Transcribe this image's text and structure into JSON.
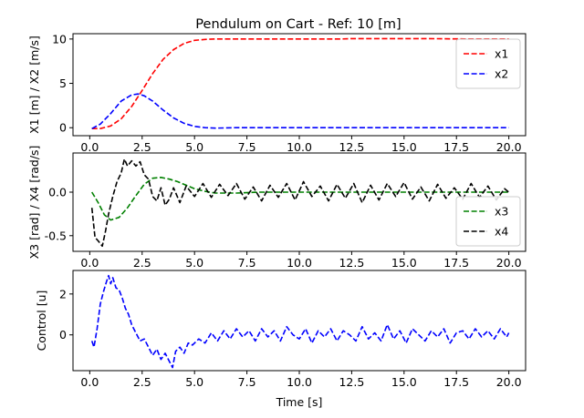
{
  "figure": {
    "title": "Pendulum on Cart - Ref: 10 [m]"
  },
  "chart_data": [
    {
      "type": "line",
      "ylabel": "X1 [m] / X2 [m/s]",
      "xlabel": "",
      "xlim": [
        -0.8,
        20.8
      ],
      "ylim": [
        -0.9,
        10.6
      ],
      "xticks": [
        "0.0",
        "2.5",
        "5.0",
        "7.5",
        "10.0",
        "12.5",
        "15.0",
        "17.5",
        "20.0"
      ],
      "xtick_values": [
        0,
        2.5,
        5,
        7.5,
        10,
        12.5,
        15,
        17.5,
        20
      ],
      "yticks": [
        "0",
        "5",
        "10"
      ],
      "ytick_values": [
        0,
        5,
        10
      ],
      "legend": "upper right",
      "series": [
        {
          "name": "x1",
          "color": "#ff0000",
          "x": [
            0.1,
            0.5,
            1.0,
            1.5,
            2.0,
            2.5,
            3.0,
            3.5,
            4.0,
            4.5,
            5.0,
            5.5,
            6.0,
            7.0,
            8.0,
            10.0,
            12.0,
            12.5,
            14.0,
            16.0,
            18.0,
            20.0
          ],
          "y": [
            -0.1,
            -0.1,
            0.2,
            1.0,
            2.4,
            4.2,
            6.1,
            7.7,
            8.8,
            9.5,
            9.85,
            9.95,
            10.0,
            10.0,
            10.0,
            10.0,
            10.0,
            10.05,
            10.05,
            10.05,
            10.0,
            10.0
          ]
        },
        {
          "name": "x2",
          "color": "#0000ff",
          "x": [
            0.1,
            0.5,
            1.0,
            1.5,
            2.0,
            2.3,
            2.6,
            3.0,
            3.5,
            4.0,
            4.5,
            5.0,
            5.5,
            6.0,
            7.0,
            8.0,
            10.0,
            12.0,
            14.0,
            16.0,
            18.0,
            20.0
          ],
          "y": [
            -0.1,
            0.4,
            1.6,
            3.0,
            3.7,
            3.8,
            3.6,
            3.0,
            2.0,
            1.1,
            0.5,
            0.15,
            0.0,
            -0.05,
            0.0,
            0.0,
            0.0,
            0.0,
            0.0,
            0.0,
            0.0,
            0.0
          ]
        }
      ]
    },
    {
      "type": "line",
      "ylabel": "X3 [rad] / X4 [rad/s]",
      "xlabel": "",
      "xlim": [
        -0.8,
        20.8
      ],
      "ylim": [
        -0.68,
        0.45
      ],
      "xticks": [
        "0.0",
        "2.5",
        "5.0",
        "7.5",
        "10.0",
        "12.5",
        "15.0",
        "17.5",
        "20.0"
      ],
      "xtick_values": [
        0,
        2.5,
        5,
        7.5,
        10,
        12.5,
        15,
        17.5,
        20
      ],
      "yticks": [
        "0.0",
        "-0.5"
      ],
      "ytick_values": [
        0,
        -0.5
      ],
      "legend": "lower right",
      "series": [
        {
          "name": "x3",
          "color": "#008000",
          "x": [
            0.1,
            0.4,
            0.7,
            1.0,
            1.4,
            1.8,
            2.2,
            2.6,
            3.0,
            3.4,
            3.8,
            4.2,
            4.6,
            5.0,
            5.5,
            6.0,
            7.0,
            8.0,
            10.0,
            12.0,
            14.0,
            16.0,
            18.0,
            20.0
          ],
          "y": [
            0.0,
            -0.12,
            -0.26,
            -0.32,
            -0.29,
            -0.18,
            -0.04,
            0.09,
            0.16,
            0.17,
            0.15,
            0.12,
            0.08,
            0.04,
            0.01,
            -0.01,
            -0.01,
            0.0,
            0.0,
            0.0,
            0.0,
            0.0,
            0.0,
            0.0
          ]
        },
        {
          "name": "x4",
          "color": "#000000",
          "x": [
            0.1,
            0.25,
            0.4,
            0.6,
            0.75,
            0.9,
            1.1,
            1.3,
            1.5,
            1.65,
            1.8,
            2.0,
            2.2,
            2.4,
            2.6,
            2.8,
            3.0,
            3.2,
            3.4,
            3.6,
            3.8,
            4.0,
            4.3,
            4.6,
            5.0,
            5.4,
            5.8,
            6.2,
            6.6,
            7.0,
            7.4,
            7.8,
            8.2,
            8.6,
            9.0,
            9.4,
            9.8,
            10.2,
            10.6,
            11.0,
            11.4,
            11.8,
            12.2,
            12.6,
            13.0,
            13.4,
            13.8,
            14.2,
            14.6,
            15.0,
            15.4,
            15.8,
            16.2,
            16.6,
            17.0,
            17.4,
            17.8,
            18.2,
            18.6,
            19.0,
            19.4,
            19.8,
            20.0
          ],
          "y": [
            -0.18,
            -0.52,
            -0.56,
            -0.62,
            -0.45,
            -0.25,
            -0.05,
            0.12,
            0.22,
            0.38,
            0.3,
            0.36,
            0.3,
            0.35,
            0.2,
            0.15,
            -0.05,
            -0.1,
            0.05,
            -0.15,
            -0.08,
            0.05,
            -0.12,
            0.07,
            -0.05,
            0.1,
            -0.06,
            0.09,
            -0.04,
            0.1,
            -0.08,
            0.06,
            -0.1,
            0.08,
            -0.06,
            0.1,
            -0.09,
            0.12,
            -0.05,
            0.07,
            -0.1,
            0.09,
            -0.07,
            0.1,
            -0.12,
            0.08,
            -0.09,
            0.1,
            -0.05,
            0.11,
            -0.08,
            0.06,
            -0.1,
            0.09,
            -0.07,
            0.05,
            -0.08,
            0.1,
            -0.06,
            0.07,
            -0.09,
            0.04,
            0.0
          ]
        }
      ]
    },
    {
      "type": "line",
      "ylabel": "Control [u]",
      "xlabel": "Time [s]",
      "xlim": [
        -0.8,
        20.8
      ],
      "ylim": [
        -1.75,
        3.15
      ],
      "xticks": [
        "0.0",
        "2.5",
        "5.0",
        "7.5",
        "10.0",
        "12.5",
        "15.0",
        "17.5",
        "20.0"
      ],
      "xtick_values": [
        0,
        2.5,
        5,
        7.5,
        10,
        12.5,
        15,
        17.5,
        20
      ],
      "yticks": [
        "2",
        "0"
      ],
      "ytick_values": [
        2,
        0
      ],
      "legend": "none",
      "series": [
        {
          "name": "",
          "color": "#0000ff",
          "x": [
            0.1,
            0.2,
            0.35,
            0.5,
            0.65,
            0.8,
            0.9,
            1.0,
            1.1,
            1.25,
            1.4,
            1.55,
            1.7,
            1.85,
            2.0,
            2.2,
            2.4,
            2.6,
            2.8,
            3.0,
            3.2,
            3.4,
            3.6,
            3.8,
            3.95,
            4.1,
            4.3,
            4.5,
            4.7,
            4.9,
            5.2,
            5.5,
            5.8,
            6.1,
            6.4,
            6.7,
            7.0,
            7.3,
            7.6,
            7.9,
            8.2,
            8.5,
            8.8,
            9.1,
            9.4,
            9.7,
            10.0,
            10.3,
            10.6,
            10.9,
            11.2,
            11.5,
            11.8,
            12.1,
            12.4,
            12.7,
            13.0,
            13.3,
            13.6,
            13.9,
            14.2,
            14.5,
            14.8,
            15.1,
            15.4,
            15.7,
            16.0,
            16.3,
            16.6,
            16.9,
            17.2,
            17.5,
            17.8,
            18.1,
            18.4,
            18.7,
            19.0,
            19.3,
            19.6,
            19.9,
            20.0
          ],
          "y": [
            -0.3,
            -0.6,
            0.3,
            1.5,
            2.1,
            2.6,
            2.9,
            2.5,
            2.8,
            2.3,
            2.2,
            1.8,
            1.3,
            1.0,
            0.5,
            0.1,
            -0.3,
            -0.2,
            -0.6,
            -1.0,
            -0.7,
            -1.2,
            -0.9,
            -1.3,
            -1.6,
            -0.8,
            -0.6,
            -0.9,
            -0.4,
            -0.5,
            -0.2,
            -0.4,
            0.1,
            -0.3,
            0.2,
            -0.2,
            0.3,
            -0.1,
            0.2,
            -0.3,
            0.3,
            -0.1,
            0.2,
            -0.3,
            0.4,
            0.0,
            -0.2,
            0.3,
            -0.4,
            0.2,
            -0.1,
            0.3,
            -0.3,
            0.2,
            0.0,
            -0.3,
            0.4,
            -0.2,
            0.1,
            -0.3,
            0.5,
            -0.2,
            0.2,
            -0.4,
            0.3,
            0.0,
            -0.3,
            0.2,
            -0.1,
            0.3,
            -0.4,
            0.1,
            0.2,
            -0.2,
            0.3,
            -0.1,
            0.2,
            -0.2,
            0.3,
            -0.1,
            0.1
          ]
        }
      ]
    }
  ]
}
